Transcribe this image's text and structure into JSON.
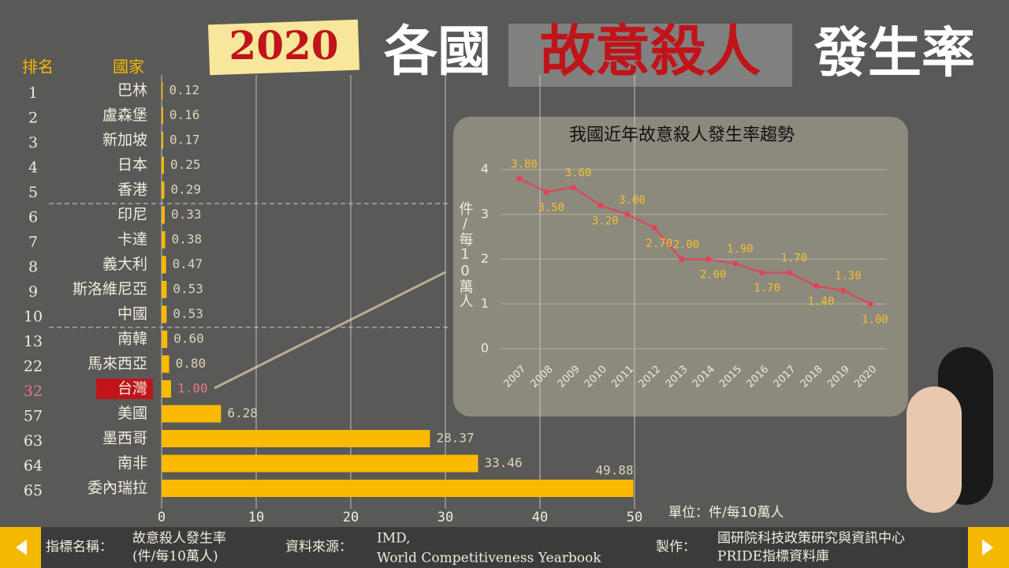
{
  "header": {
    "year": "2020",
    "title_a": "各國",
    "title_b": "故意殺人",
    "title_c": "發生率"
  },
  "chart_data": [
    {
      "type": "bar",
      "rank_header": "排名",
      "category_header": "國家",
      "ranks": [
        "1",
        "2",
        "3",
        "4",
        "5",
        "6",
        "7",
        "8",
        "9",
        "10",
        "13",
        "22",
        "32",
        "57",
        "63",
        "64",
        "65"
      ],
      "categories": [
        "巴林",
        "盧森堡",
        "新加坡",
        "日本",
        "香港",
        "印尼",
        "卡達",
        "義大利",
        "斯洛維尼亞",
        "中國",
        "南韓",
        "馬來西亞",
        "台灣",
        "美國",
        "墨西哥",
        "南非",
        "委內瑞拉"
      ],
      "values": [
        0.12,
        0.16,
        0.17,
        0.25,
        0.29,
        0.33,
        0.38,
        0.47,
        0.53,
        0.53,
        0.6,
        0.8,
        1.0,
        6.28,
        28.37,
        33.46,
        49.88
      ],
      "value_labels": [
        "0.12",
        "0.16",
        "0.17",
        "0.25",
        "0.29",
        "0.33",
        "0.38",
        "0.47",
        "0.53",
        "0.53",
        "0.60",
        "0.80",
        "1.00",
        "6.28",
        "28.37",
        "33.46",
        "49.88"
      ],
      "color": "#fbb900",
      "highlight": "台灣",
      "xlim": [
        0,
        50
      ],
      "xticks": [
        0,
        10,
        20,
        30,
        40,
        50
      ],
      "grid": true,
      "unit_label": "單位：件/每10萬人"
    },
    {
      "type": "line",
      "title": "我國近年故意殺人發生率趨勢",
      "y_label": "件/每10萬人",
      "categories": [
        "2007",
        "2008",
        "2009",
        "2010",
        "2011",
        "2012",
        "2013",
        "2014",
        "2015",
        "2016",
        "2017",
        "2018",
        "2019",
        "2020"
      ],
      "values": [
        3.8,
        3.5,
        3.6,
        3.2,
        3.0,
        2.7,
        2.0,
        2.0,
        1.9,
        1.7,
        1.7,
        1.4,
        1.3,
        1.0
      ],
      "value_labels": [
        "3.80",
        "3.50",
        "3.60",
        "3.20",
        "3.00",
        "2.70",
        "2.00",
        "2.00",
        "1.90",
        "1.70",
        "1.70",
        "1.40",
        "1.30",
        "1.00"
      ],
      "color": "#e8405a",
      "ylim": [
        0,
        4
      ],
      "yticks": [
        0,
        1,
        2,
        3,
        4
      ],
      "grid": true
    }
  ],
  "footer": {
    "indicator_label": "指標名稱：",
    "indicator": [
      "故意殺人發生率",
      "(件/每10萬人)"
    ],
    "source_label": "資料來源：",
    "source": [
      "IMD,",
      "World Competitiveness Yearbook"
    ],
    "maker_label": "製作：",
    "maker": [
      "國研院科技政策研究與資訊中心",
      "PRIDE指標資料庫"
    ]
  }
}
